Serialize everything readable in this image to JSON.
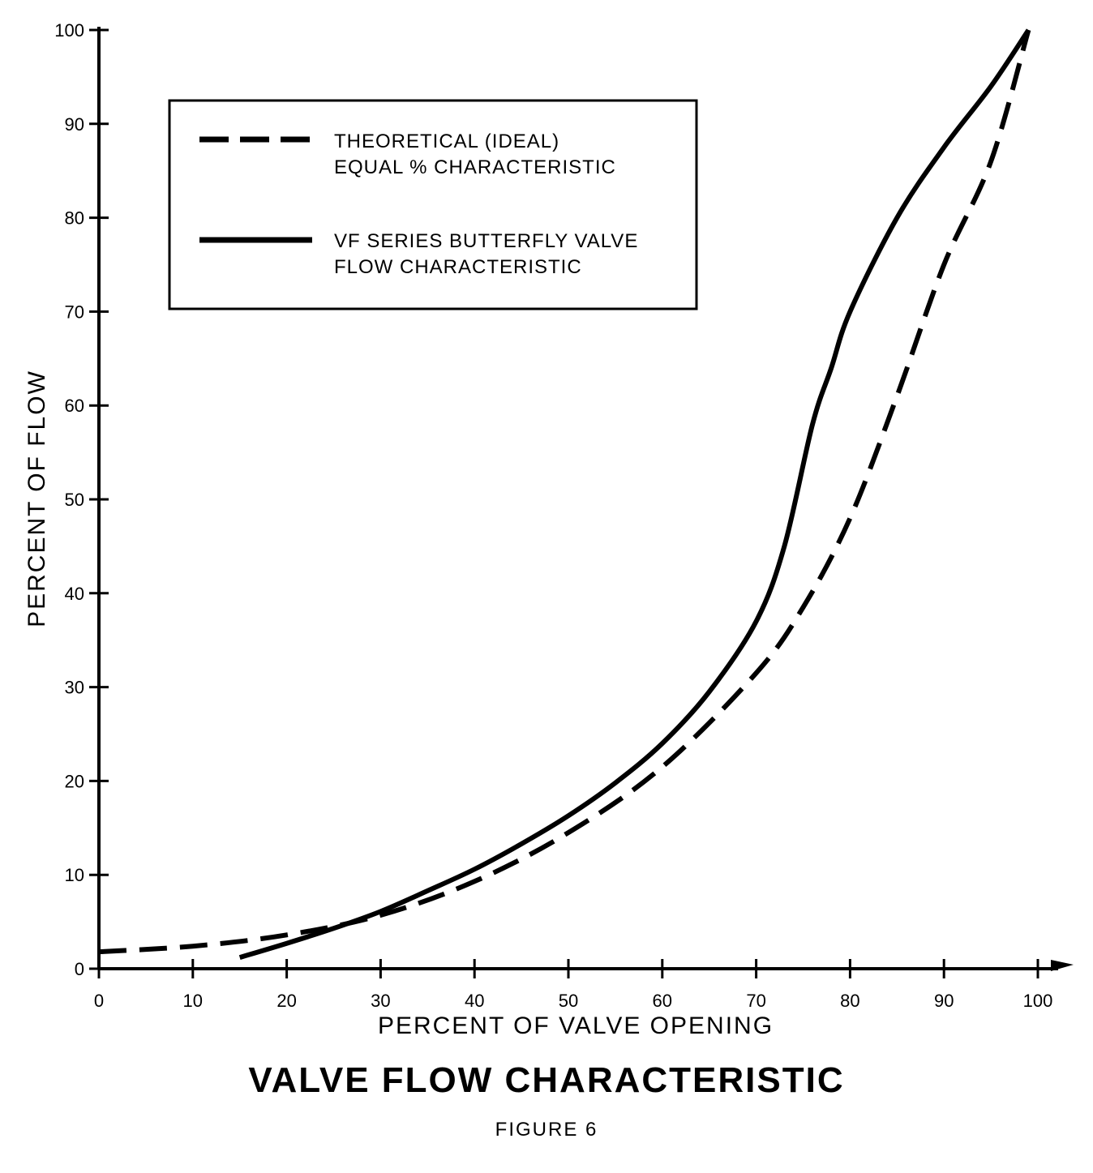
{
  "chart_data": {
    "type": "line",
    "title": "VALVE FLOW CHARACTERISTIC",
    "subtitle": "FIGURE 6",
    "xlabel": "PERCENT OF VALVE OPENING",
    "ylabel": "PERCENT OF FLOW",
    "xlim": [
      0,
      100
    ],
    "ylim": [
      0,
      100
    ],
    "xticks": [
      0,
      10,
      20,
      30,
      40,
      50,
      60,
      70,
      80,
      90,
      100
    ],
    "yticks": [
      0,
      10,
      20,
      30,
      40,
      50,
      60,
      70,
      80,
      90,
      100
    ],
    "grid": false,
    "legend_position": "top-left",
    "series": [
      {
        "name": "THEORETICAL (IDEAL) EQUAL % CHARACTERISTIC",
        "legend_lines": [
          "THEORETICAL (IDEAL)",
          "EQUAL % CHARACTERISTIC"
        ],
        "style": "dashed",
        "x": [
          0,
          10,
          20,
          30,
          40,
          50,
          60,
          70,
          75,
          80,
          85,
          90,
          95,
          99
        ],
        "y": [
          1.8,
          2.4,
          3.6,
          5.7,
          9.3,
          14.5,
          21.5,
          31.5,
          38.5,
          48,
          61,
          75,
          86,
          100
        ]
      },
      {
        "name": "VF SERIES BUTTERFLY VALVE FLOW CHARACTERISTIC",
        "legend_lines": [
          "VF SERIES BUTTERFLY VALVE",
          "FLOW CHARACTERISTIC"
        ],
        "style": "solid",
        "x": [
          15,
          20,
          25,
          30,
          35,
          40,
          45,
          50,
          55,
          60,
          65,
          70,
          73,
          76,
          78,
          80,
          85,
          90,
          95,
          99
        ],
        "y": [
          1.2,
          2.7,
          4.3,
          6.1,
          8.3,
          10.6,
          13.3,
          16.3,
          19.8,
          24,
          29.5,
          37,
          45,
          58,
          64,
          70,
          80,
          87.5,
          94,
          100
        ]
      }
    ]
  }
}
